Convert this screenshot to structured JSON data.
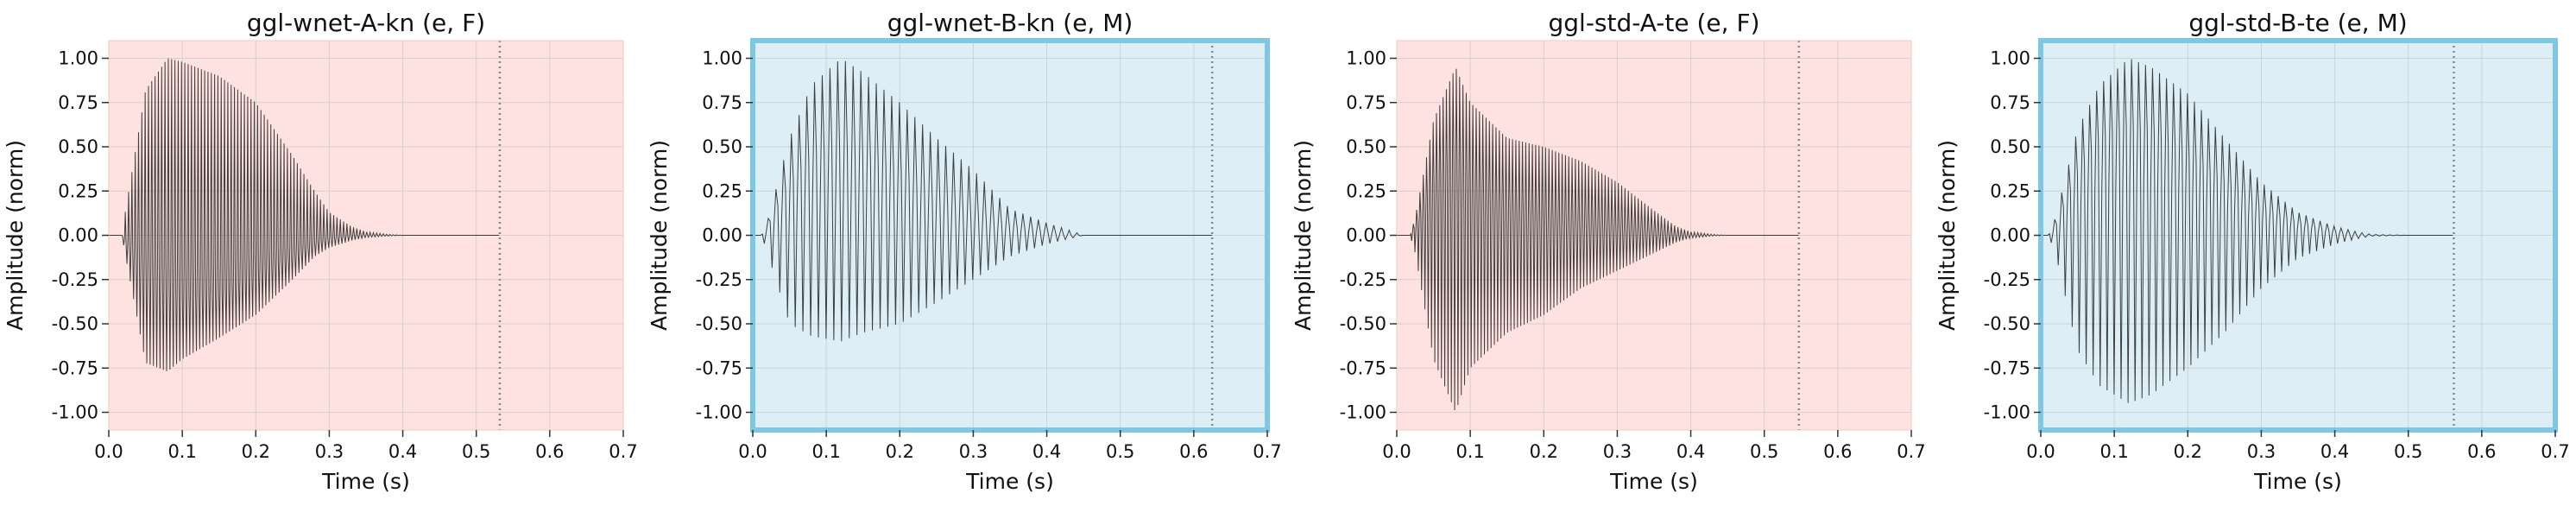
{
  "chart_data": [
    {
      "type": "line",
      "title": "ggl-wnet-A-kn (e, F)",
      "xlabel": "Time (s)",
      "ylabel": "Amplitude (norm)",
      "xlim": [
        0.0,
        0.7
      ],
      "ylim": [
        -1.1,
        1.1
      ],
      "xticks": [
        "0.0",
        "0.1",
        "0.2",
        "0.3",
        "0.4",
        "0.5",
        "0.6",
        "0.7"
      ],
      "yticks": [
        "1.00",
        "0.75",
        "0.50",
        "0.25",
        "0.00",
        "-0.25",
        "-0.50",
        "-0.75",
        "-1.00"
      ],
      "grid": true,
      "background": "#fde2e0",
      "highlighted": false,
      "duration_marker_x": 0.532,
      "envelope": {
        "x": [
          0.0,
          0.018,
          0.022,
          0.05,
          0.08,
          0.1,
          0.15,
          0.2,
          0.25,
          0.28,
          0.3,
          0.33,
          0.35,
          0.38,
          0.4,
          0.532
        ],
        "upper": [
          0.0,
          0.0,
          0.12,
          0.82,
          1.0,
          0.98,
          0.9,
          0.75,
          0.45,
          0.25,
          0.13,
          0.05,
          0.02,
          0.005,
          0.0,
          0.0
        ],
        "lower": [
          0.0,
          0.0,
          -0.1,
          -0.72,
          -0.77,
          -0.7,
          -0.58,
          -0.45,
          -0.25,
          -0.12,
          -0.07,
          -0.03,
          -0.012,
          -0.004,
          0.0,
          0.0
        ],
        "inner": [
          0.0,
          0.0,
          -0.05,
          -0.2,
          -0.27,
          -0.35,
          -0.33,
          -0.2,
          -0.12,
          -0.05,
          -0.02,
          0.0,
          0.0,
          0.0,
          0.0,
          0.0
        ]
      },
      "cycle_period": 0.0045
    },
    {
      "type": "line",
      "title": "ggl-wnet-B-kn (e, M)",
      "xlabel": "Time (s)",
      "ylabel": "Amplitude (norm)",
      "xlim": [
        0.0,
        0.7
      ],
      "ylim": [
        -1.1,
        1.1
      ],
      "xticks": [
        "0.0",
        "0.1",
        "0.2",
        "0.3",
        "0.4",
        "0.5",
        "0.6",
        "0.7"
      ],
      "yticks": [
        "1.00",
        "0.75",
        "0.50",
        "0.25",
        "0.00",
        "-0.25",
        "-0.50",
        "-0.75",
        "-1.00"
      ],
      "grid": true,
      "background": "#ddeef6",
      "highlighted": true,
      "duration_marker_x": 0.625,
      "envelope": {
        "x": [
          0.0,
          0.012,
          0.02,
          0.05,
          0.08,
          0.12,
          0.15,
          0.2,
          0.25,
          0.3,
          0.35,
          0.4,
          0.43,
          0.45,
          0.5,
          0.625
        ],
        "upper": [
          0.0,
          0.0,
          0.08,
          0.55,
          0.85,
          1.0,
          0.92,
          0.75,
          0.55,
          0.37,
          0.15,
          0.07,
          0.03,
          0.0,
          0.0,
          0.0
        ],
        "lower": [
          0.0,
          0.0,
          -0.1,
          -0.5,
          -0.57,
          -0.6,
          -0.55,
          -0.5,
          -0.38,
          -0.25,
          -0.12,
          -0.05,
          -0.02,
          0.0,
          0.0,
          0.0
        ],
        "inner": [
          0.0,
          0.0,
          0.05,
          0.3,
          0.45,
          0.5,
          0.45,
          0.35,
          0.2,
          0.1,
          0.05,
          0.02,
          0.0,
          0.0,
          0.0,
          0.0
        ]
      },
      "cycle_period": 0.0105
    },
    {
      "type": "line",
      "title": "ggl-std-A-te (e, F)",
      "xlabel": "Time (s)",
      "ylabel": "Amplitude (norm)",
      "xlim": [
        0.0,
        0.7
      ],
      "ylim": [
        -1.1,
        1.1
      ],
      "xticks": [
        "0.0",
        "0.1",
        "0.2",
        "0.3",
        "0.4",
        "0.5",
        "0.6",
        "0.7"
      ],
      "yticks": [
        "1.00",
        "0.75",
        "0.50",
        "0.25",
        "0.00",
        "-0.25",
        "-0.50",
        "-0.75",
        "-1.00"
      ],
      "grid": true,
      "background": "#fde2e0",
      "highlighted": false,
      "duration_marker_x": 0.547,
      "envelope": {
        "x": [
          0.0,
          0.018,
          0.025,
          0.05,
          0.08,
          0.1,
          0.15,
          0.2,
          0.25,
          0.3,
          0.35,
          0.38,
          0.4,
          0.43,
          0.45,
          0.547
        ],
        "upper": [
          0.0,
          0.0,
          0.1,
          0.65,
          0.95,
          0.75,
          0.55,
          0.5,
          0.42,
          0.3,
          0.14,
          0.05,
          0.02,
          0.005,
          0.0,
          0.0
        ],
        "lower": [
          0.0,
          0.0,
          -0.1,
          -0.7,
          -1.0,
          -0.75,
          -0.55,
          -0.45,
          -0.3,
          -0.2,
          -0.1,
          -0.04,
          -0.015,
          -0.004,
          0.0,
          0.0
        ],
        "inner": [
          0.0,
          0.0,
          0.05,
          0.3,
          0.45,
          0.3,
          0.15,
          0.1,
          0.08,
          0.05,
          0.02,
          0.0,
          0.0,
          0.0,
          0.0,
          0.0
        ]
      },
      "cycle_period": 0.0045
    },
    {
      "type": "line",
      "title": "ggl-std-B-te (e, M)",
      "xlabel": "Time (s)",
      "ylabel": "Amplitude (norm)",
      "xlim": [
        0.0,
        0.7
      ],
      "ylim": [
        -1.1,
        1.1
      ],
      "xticks": [
        "0.0",
        "0.1",
        "0.2",
        "0.3",
        "0.4",
        "0.5",
        "0.6",
        "0.7"
      ],
      "yticks": [
        "1.00",
        "0.75",
        "0.50",
        "0.25",
        "0.00",
        "-0.25",
        "-0.50",
        "-0.75",
        "-1.00"
      ],
      "grid": true,
      "background": "#ddeef6",
      "highlighted": true,
      "duration_marker_x": 0.562,
      "envelope": {
        "x": [
          0.0,
          0.01,
          0.02,
          0.05,
          0.08,
          0.12,
          0.15,
          0.2,
          0.25,
          0.3,
          0.35,
          0.4,
          0.43,
          0.45,
          0.5,
          0.562
        ],
        "upper": [
          0.0,
          0.0,
          0.1,
          0.6,
          0.85,
          1.0,
          0.95,
          0.8,
          0.55,
          0.3,
          0.13,
          0.05,
          0.02,
          0.005,
          0.0,
          0.0
        ],
        "lower": [
          0.0,
          0.0,
          -0.1,
          -0.65,
          -0.85,
          -0.95,
          -0.9,
          -0.75,
          -0.55,
          -0.3,
          -0.13,
          -0.05,
          -0.02,
          -0.005,
          0.0,
          0.0
        ],
        "inner": [
          0.0,
          0.0,
          0.05,
          0.35,
          0.55,
          0.62,
          0.58,
          0.45,
          0.3,
          0.15,
          0.07,
          0.02,
          0.0,
          0.0,
          0.0,
          0.0
        ]
      },
      "cycle_period": 0.0095
    }
  ],
  "colors": {
    "waveform": "#2b2b2b",
    "marker": "#888888",
    "highlight_border": "#7ec8e3",
    "grid": "#c8c8c8"
  }
}
